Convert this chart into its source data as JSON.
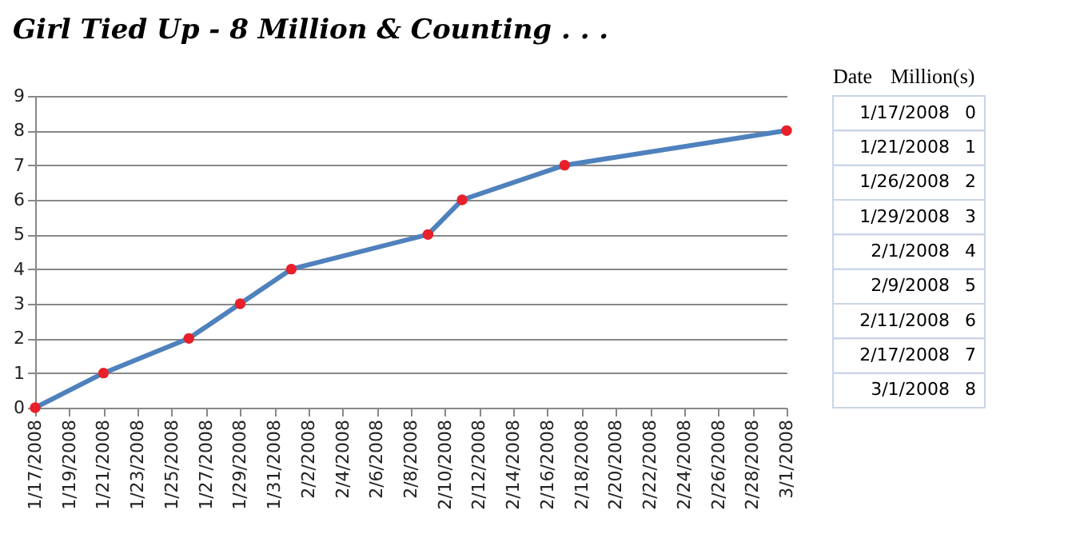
{
  "chart_data": {
    "type": "line",
    "title": "Girl Tied Up - 8 Million & Counting . . .",
    "x": [
      "2008-01-17",
      "2008-01-21",
      "2008-01-26",
      "2008-01-29",
      "2008-02-01",
      "2008-02-09",
      "2008-02-11",
      "2008-02-17",
      "2008-03-01"
    ],
    "series": [
      {
        "color": "#4f81bd",
        "values": [
          0,
          1,
          2,
          3,
          4,
          5,
          6,
          7,
          8
        ]
      }
    ],
    "xlim": [
      "2008-01-17",
      "2008-03-01"
    ],
    "xticks": [
      {
        "value": "2008-01-17",
        "label": "1/17/2008"
      },
      {
        "value": "2008-01-19",
        "label": "1/19/2008"
      },
      {
        "value": "2008-01-21",
        "label": "1/21/2008"
      },
      {
        "value": "2008-01-23",
        "label": "1/23/2008"
      },
      {
        "value": "2008-01-25",
        "label": "1/25/2008"
      },
      {
        "value": "2008-01-27",
        "label": "1/27/2008"
      },
      {
        "value": "2008-01-29",
        "label": "1/29/2008"
      },
      {
        "value": "2008-01-31",
        "label": "1/31/2008"
      },
      {
        "value": "2008-02-02",
        "label": "2/2/2008"
      },
      {
        "value": "2008-02-04",
        "label": "2/4/2008"
      },
      {
        "value": "2008-02-06",
        "label": "2/6/2008"
      },
      {
        "value": "2008-02-08",
        "label": "2/8/2008"
      },
      {
        "value": "2008-02-10",
        "label": "2/10/2008"
      },
      {
        "value": "2008-02-12",
        "label": "2/12/2008"
      },
      {
        "value": "2008-02-14",
        "label": "2/14/2008"
      },
      {
        "value": "2008-02-16",
        "label": "2/16/2008"
      },
      {
        "value": "2008-02-18",
        "label": "2/18/2008"
      },
      {
        "value": "2008-02-20",
        "label": "2/20/2008"
      },
      {
        "value": "2008-02-22",
        "label": "2/22/2008"
      },
      {
        "value": "2008-02-24",
        "label": "2/24/2008"
      },
      {
        "value": "2008-02-26",
        "label": "2/26/2008"
      },
      {
        "value": "2008-02-28",
        "label": "2/28/2008"
      },
      {
        "value": "2008-03-01",
        "label": "3/1/2008"
      }
    ],
    "ylim": [
      0,
      9
    ],
    "yticks": [
      0,
      1,
      2,
      3,
      4,
      5,
      6,
      7,
      8,
      9
    ],
    "grid": "y",
    "marker": "circle",
    "line_style": "solid",
    "legend": false,
    "annotations": [
      "Date",
      "Million(s)",
      "1/17/2008",
      "1/21/2008",
      "1/26/2008",
      "1/29/2008",
      "2/1/2008",
      "2/9/2008",
      "2/11/2008",
      "2/17/2008",
      "3/1/2008",
      "0",
      "1",
      "2",
      "3",
      "4",
      "5",
      "6",
      "7",
      "8"
    ]
  }
}
